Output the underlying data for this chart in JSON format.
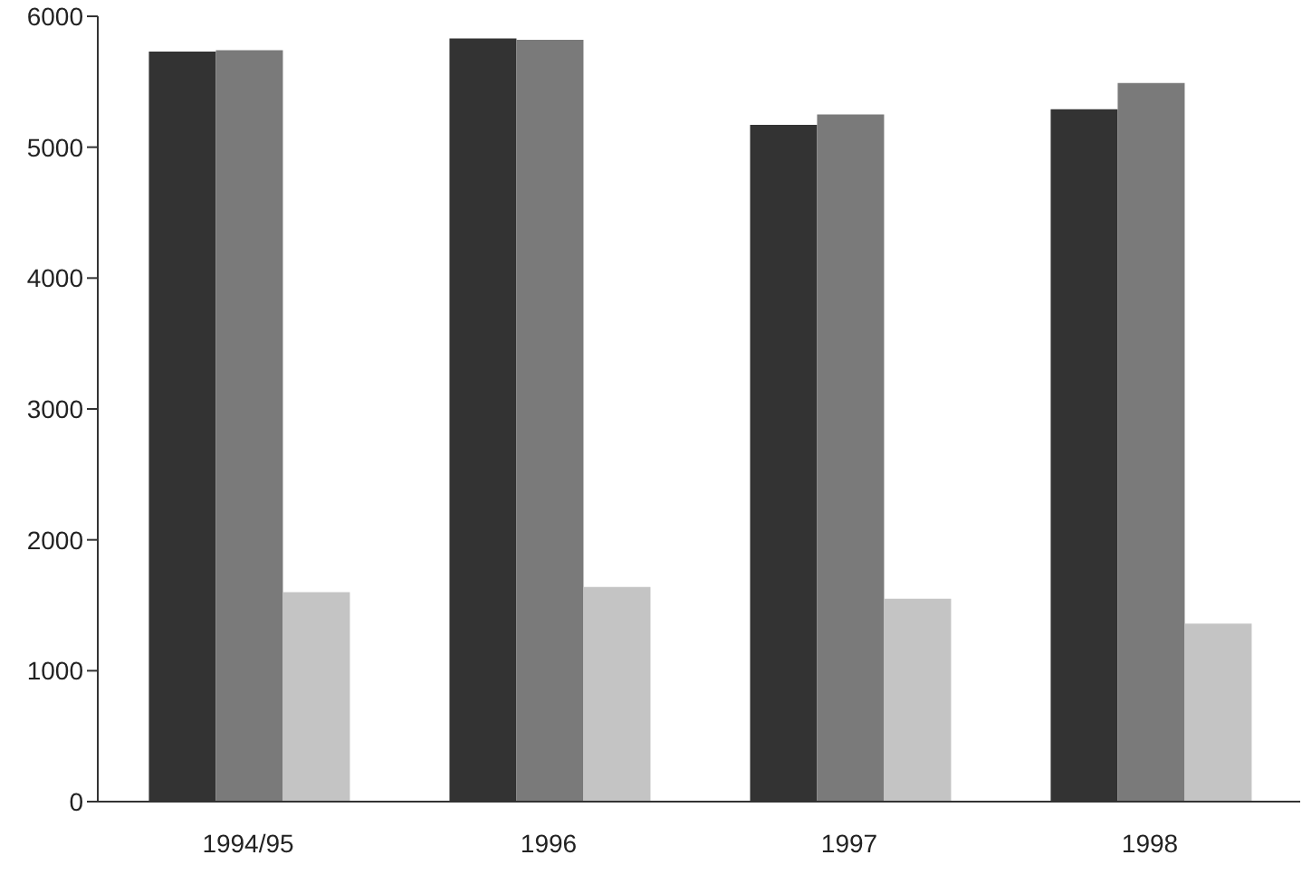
{
  "chart_data": {
    "type": "bar",
    "categories": [
      "1994/95",
      "1996",
      "1997",
      "1998"
    ],
    "series": [
      {
        "color": "#333333",
        "values": [
          5730,
          5830,
          5170,
          5290
        ]
      },
      {
        "color": "#7a7a7a",
        "values": [
          5740,
          5820,
          5250,
          5490
        ]
      },
      {
        "color": "#c4c4c4",
        "values": [
          1600,
          1640,
          1550,
          1360
        ]
      }
    ],
    "ylim": [
      0,
      6000
    ],
    "yticks": [
      0,
      1000,
      2000,
      3000,
      4000,
      5000,
      6000
    ],
    "grid": false,
    "legend": false
  }
}
